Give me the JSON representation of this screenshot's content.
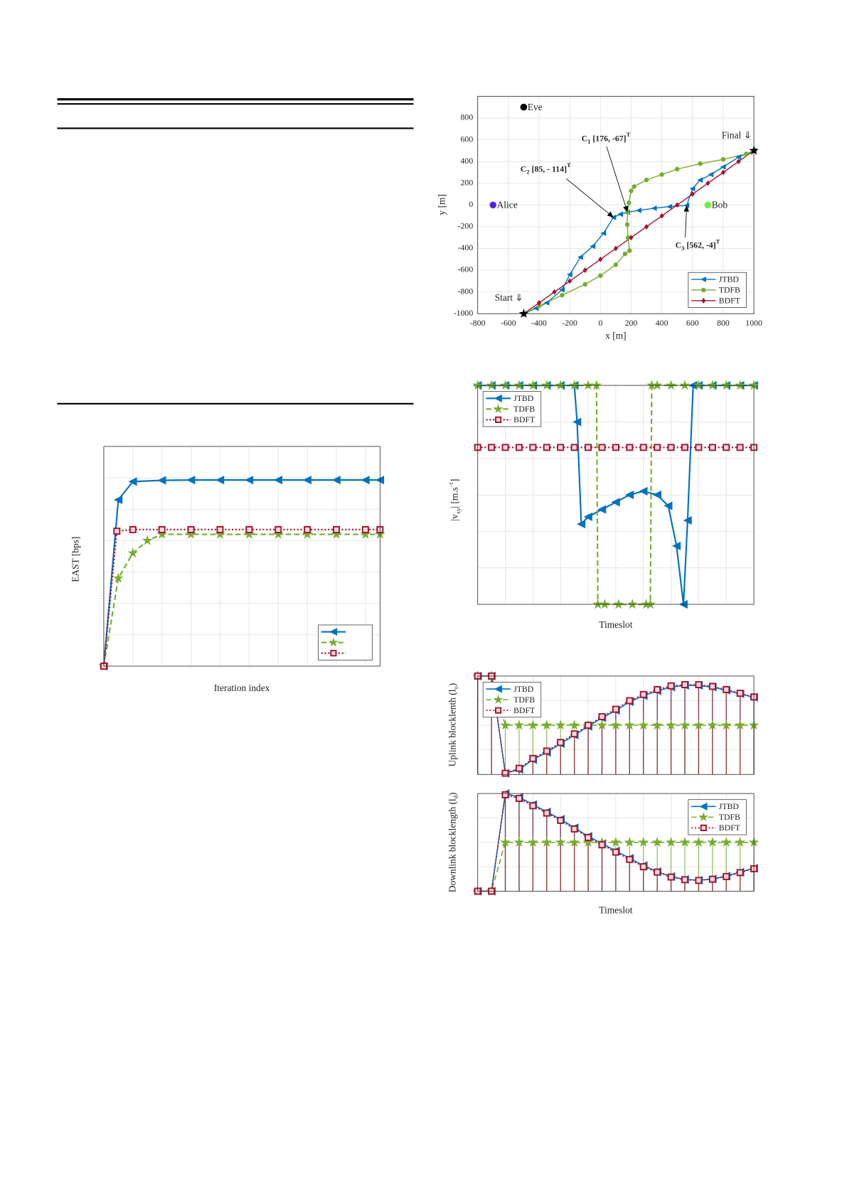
{
  "chart_data": [
    {
      "type": "line",
      "xlabel": "x [m]",
      "ylabel": "y [m]",
      "xlim": [
        -800,
        1000
      ],
      "xticks": [
        -800,
        -600,
        -400,
        -200,
        0,
        200,
        400,
        600,
        800,
        1000
      ],
      "ylim": [
        -1000,
        1000
      ],
      "yticks": [
        -1000,
        -800,
        -600,
        -400,
        -200,
        0,
        200,
        400,
        600,
        800
      ],
      "grid": true,
      "legend": "southeast",
      "series": [
        {
          "name": "JTBD",
          "color": "#0072bd",
          "linestyle": "solid",
          "marker": "triangle",
          "x": [
            -500,
            -420,
            -350,
            -250,
            -200,
            -130,
            -50,
            20,
            85,
            130,
            176,
            250,
            350,
            450,
            562,
            600,
            650,
            720,
            800,
            900,
            1000
          ],
          "values": [
            -1000,
            -950,
            -900,
            -780,
            -640,
            -480,
            -380,
            -260,
            -114,
            -85,
            -67,
            -50,
            -30,
            -15,
            -4,
            150,
            230,
            280,
            350,
            440,
            500
          ]
        },
        {
          "name": "TDFB",
          "color": "#77ac30",
          "linestyle": "solid",
          "marker": "circle",
          "x": [
            -500,
            -400,
            -250,
            -100,
            0,
            100,
            160,
            190,
            180,
            175,
            176,
            185,
            200,
            220,
            300,
            400,
            500,
            650,
            800,
            950,
            1000
          ],
          "values": [
            -1000,
            -930,
            -830,
            -730,
            -650,
            -550,
            -450,
            -420,
            -300,
            -180,
            -67,
            20,
            130,
            170,
            230,
            280,
            330,
            380,
            420,
            470,
            500
          ]
        },
        {
          "name": "BDFT",
          "color": "#a2142f",
          "linestyle": "solid",
          "marker": "diamond",
          "x": [
            -500,
            -400,
            -300,
            -200,
            -100,
            0,
            100,
            200,
            300,
            400,
            500,
            600,
            700,
            800,
            900,
            1000
          ],
          "values": [
            -1000,
            -900,
            -800,
            -700,
            -600,
            -500,
            -400,
            -300,
            -200,
            -100,
            0,
            100,
            200,
            300,
            400,
            500
          ]
        }
      ],
      "points": [
        {
          "label": "Eve",
          "x": -500,
          "y": 900,
          "color": "#000000"
        },
        {
          "label": "Alice",
          "x": -700,
          "y": 0,
          "color": "#3a2bd6"
        },
        {
          "label": "Bob",
          "x": 700,
          "y": 0,
          "color": "#6cf03c"
        }
      ],
      "annotations": [
        {
          "parts": [
            {
              "text": "C"
            },
            {
              "sub": "1"
            },
            {
              "text": " [176, -67]"
            },
            {
              "sup": "T"
            }
          ],
          "x": 176,
          "y": -67
        },
        {
          "parts": [
            {
              "text": "C"
            },
            {
              "sub": "2"
            },
            {
              "text": " [85, - 114]"
            },
            {
              "sup": "T"
            }
          ],
          "x": 85,
          "y": -114
        },
        {
          "parts": [
            {
              "text": "C"
            },
            {
              "sub": "3"
            },
            {
              "text": " [562, -4]"
            },
            {
              "sup": "T"
            }
          ],
          "x": 562,
          "y": -4
        }
      ],
      "start_label": "Start ⇓",
      "final_label": "Final ⇓"
    },
    {
      "type": "line",
      "xlabel": "Iteration index",
      "ylabel": "EAST [bps]",
      "xlim": [
        0,
        9.5
      ],
      "xgrid": [
        1,
        2,
        3,
        4,
        5,
        6,
        7,
        8,
        9
      ],
      "ylim": [
        0,
        7
      ],
      "ygrid": [
        1,
        2,
        3,
        4,
        5,
        6
      ],
      "grid": true,
      "legend": "southeast",
      "series": [
        {
          "color": "#0072bd",
          "linestyle": "solid",
          "marker": "triangle",
          "x": [
            0,
            0.5,
            1,
            2,
            3,
            4,
            5,
            6,
            7,
            8,
            9,
            9.5
          ],
          "values": [
            0,
            5.3,
            5.88,
            5.92,
            5.93,
            5.93,
            5.93,
            5.93,
            5.93,
            5.93,
            5.93,
            5.93
          ]
        },
        {
          "color": "#77ac30",
          "linestyle": "dashed",
          "marker": "star",
          "x": [
            0,
            0.5,
            1,
            1.5,
            2,
            3,
            4,
            5,
            6,
            7,
            8,
            9,
            9.5
          ],
          "values": [
            0,
            2.8,
            3.6,
            4.0,
            4.2,
            4.2,
            4.2,
            4.2,
            4.2,
            4.2,
            4.2,
            4.2,
            4.2
          ]
        },
        {
          "color": "#a2142f",
          "linestyle": "dotted",
          "marker": "square",
          "x": [
            0,
            0.45,
            1,
            2,
            3,
            4,
            5,
            6,
            7,
            8,
            9,
            9.5
          ],
          "values": [
            0,
            4.3,
            4.35,
            4.35,
            4.35,
            4.35,
            4.35,
            4.35,
            4.35,
            4.35,
            4.35,
            4.35
          ]
        }
      ]
    },
    {
      "type": "line",
      "xlabel": "Timeslot",
      "ylabel": [
        {
          "text": "|v"
        },
        {
          "sub": "xy"
        },
        {
          "text": "| [m.s"
        },
        {
          "sup": "-1"
        },
        {
          "text": "]"
        }
      ],
      "xlim": [
        0,
        10
      ],
      "xgrid": [
        1,
        2,
        3,
        4,
        5,
        6,
        7,
        8,
        9
      ],
      "ylim": [
        0,
        6
      ],
      "ygrid": [
        1,
        2,
        3,
        4,
        5
      ],
      "grid": true,
      "legend": "northwest",
      "series": [
        {
          "name": "JTBD",
          "color": "#0072bd",
          "linestyle": "solid",
          "marker": "triangle",
          "x": [
            0,
            0.5,
            1,
            1.5,
            2,
            2.5,
            3,
            3.5,
            3.6,
            3.75,
            4,
            4.5,
            5,
            5.5,
            6,
            6.5,
            6.9,
            7.2,
            7.45,
            7.6,
            7.8,
            8,
            8.5,
            9,
            9.5,
            10
          ],
          "values": [
            6,
            6,
            6,
            6,
            6,
            6,
            6,
            6,
            5,
            2.2,
            2.4,
            2.6,
            2.8,
            3,
            3.1,
            3,
            2.7,
            1.6,
            0,
            2.3,
            6,
            6,
            6,
            6,
            6,
            6
          ]
        },
        {
          "name": "TDFB",
          "color": "#77ac30",
          "linestyle": "dashed",
          "marker": "star",
          "x": [
            0,
            0.5,
            1,
            1.5,
            2,
            2.5,
            3,
            3.5,
            4,
            4.3,
            4.35,
            4.6,
            5.1,
            5.6,
            6.1,
            6.25,
            6.3,
            6.5,
            7,
            7.5,
            8,
            8.5,
            9,
            9.5,
            10
          ],
          "values": [
            6,
            6,
            6,
            6,
            6,
            6,
            6,
            6,
            6,
            6,
            0,
            0,
            0,
            0,
            0,
            0,
            6,
            6,
            6,
            6,
            6,
            6,
            6,
            6,
            6
          ]
        },
        {
          "name": "BDFT",
          "color": "#a2142f",
          "linestyle": "dotted",
          "marker": "square",
          "x": [
            0,
            0.5,
            1,
            1.5,
            2,
            2.5,
            3,
            3.5,
            4,
            4.5,
            5,
            5.5,
            6,
            6.5,
            7,
            7.5,
            8,
            8.5,
            9,
            9.5,
            10
          ],
          "values": [
            4.3,
            4.3,
            4.3,
            4.3,
            4.3,
            4.3,
            4.3,
            4.3,
            4.3,
            4.3,
            4.3,
            4.3,
            4.3,
            4.3,
            4.3,
            4.3,
            4.3,
            4.3,
            4.3,
            4.3,
            4.3
          ]
        }
      ]
    },
    {
      "type": "line",
      "stem": true,
      "ylabel": [
        {
          "text": "Uplink blocklenth (l"
        },
        {
          "sub": "u"
        },
        {
          "text": ")"
        }
      ],
      "xlim": [
        0,
        10
      ],
      "xgrid": [
        1,
        2,
        3,
        4,
        5,
        6,
        7,
        8,
        9
      ],
      "ylim": [
        0,
        4
      ],
      "ygrid": [
        1,
        2,
        3
      ],
      "grid": true,
      "legend": "northwest",
      "series": [
        {
          "name": "JTBD",
          "color": "#0072bd",
          "linestyle": "solid",
          "marker": "triangle",
          "x": [
            0,
            0.5,
            1,
            1.5,
            2,
            2.5,
            3,
            3.5,
            4,
            4.5,
            5,
            5.5,
            6,
            6.5,
            7,
            7.5,
            8,
            8.5,
            9,
            9.5,
            10
          ],
          "values": [
            4,
            4,
            0.05,
            0.2,
            0.6,
            0.9,
            1.25,
            1.6,
            1.95,
            2.3,
            2.6,
            2.95,
            3.2,
            3.4,
            3.55,
            3.62,
            3.62,
            3.55,
            3.42,
            3.28,
            3.13
          ]
        },
        {
          "name": "TDFB",
          "color": "#77ac30",
          "linestyle": "dashed",
          "marker": "star",
          "x": [
            0,
            0.5,
            1,
            1.5,
            2,
            2.5,
            3,
            3.5,
            4,
            4.5,
            5,
            5.5,
            6,
            6.5,
            7,
            7.5,
            8,
            8.5,
            9,
            9.5,
            10
          ],
          "values": [
            4,
            4,
            2,
            2,
            2,
            2,
            2,
            2,
            2,
            2,
            2,
            2,
            2,
            2,
            2,
            2,
            2,
            2,
            2,
            2,
            2
          ]
        },
        {
          "name": "BDFT",
          "color": "#a2142f",
          "linestyle": "dotted",
          "marker": "square",
          "x": [
            0,
            0.5,
            1,
            1.5,
            2,
            2.5,
            3,
            3.5,
            4,
            4.5,
            5,
            5.5,
            6,
            6.5,
            7,
            7.5,
            8,
            8.5,
            9,
            9.5,
            10
          ],
          "values": [
            4,
            4,
            0.05,
            0.25,
            0.65,
            0.95,
            1.3,
            1.65,
            2,
            2.35,
            2.65,
            3,
            3.25,
            3.45,
            3.6,
            3.65,
            3.65,
            3.58,
            3.45,
            3.3,
            3.15
          ]
        }
      ]
    },
    {
      "type": "line",
      "stem": true,
      "xlabel": "Timeslot",
      "ylabel": [
        {
          "text": "Downlink blocklength (l"
        },
        {
          "sub": "d"
        },
        {
          "text": ")"
        }
      ],
      "xlim": [
        0,
        10
      ],
      "xgrid": [
        1,
        2,
        3,
        4,
        5,
        6,
        7,
        8,
        9
      ],
      "ylim": [
        0,
        4
      ],
      "ygrid": [
        1,
        2,
        3
      ],
      "grid": true,
      "legend": "northeast",
      "series": [
        {
          "name": "JTBD",
          "color": "#0072bd",
          "linestyle": "solid",
          "marker": "triangle",
          "x": [
            0,
            0.5,
            1,
            1.5,
            2,
            2.5,
            3,
            3.5,
            4,
            4.5,
            5,
            5.5,
            6,
            6.5,
            7,
            7.5,
            8,
            8.5,
            9,
            9.5,
            10
          ],
          "values": [
            0,
            0,
            4,
            3.85,
            3.55,
            3.25,
            2.95,
            2.6,
            2.25,
            1.95,
            1.65,
            1.35,
            1.05,
            0.8,
            0.6,
            0.48,
            0.45,
            0.5,
            0.62,
            0.78,
            0.94
          ]
        },
        {
          "name": "TDFB",
          "color": "#77ac30",
          "linestyle": "dashed",
          "marker": "star",
          "x": [
            0,
            0.5,
            1,
            1.5,
            2,
            2.5,
            3,
            3.5,
            4,
            4.5,
            5,
            5.5,
            6,
            6.5,
            7,
            7.5,
            8,
            8.5,
            9,
            9.5,
            10
          ],
          "values": [
            0,
            0,
            2,
            2,
            2,
            2,
            2,
            2,
            2,
            2,
            2,
            2,
            2,
            2,
            2,
            2,
            2,
            2,
            2,
            2,
            2
          ]
        },
        {
          "name": "BDFT",
          "color": "#a2142f",
          "linestyle": "dotted",
          "marker": "square",
          "x": [
            0,
            0.5,
            1,
            1.5,
            2,
            2.5,
            3,
            3.5,
            4,
            4.5,
            5,
            5.5,
            6,
            6.5,
            7,
            7.5,
            8,
            8.5,
            9,
            9.5,
            10
          ],
          "values": [
            0,
            0,
            3.95,
            3.8,
            3.5,
            3.2,
            2.9,
            2.55,
            2.2,
            1.9,
            1.6,
            1.3,
            1.0,
            0.78,
            0.58,
            0.47,
            0.44,
            0.49,
            0.6,
            0.76,
            0.92
          ]
        }
      ]
    }
  ]
}
